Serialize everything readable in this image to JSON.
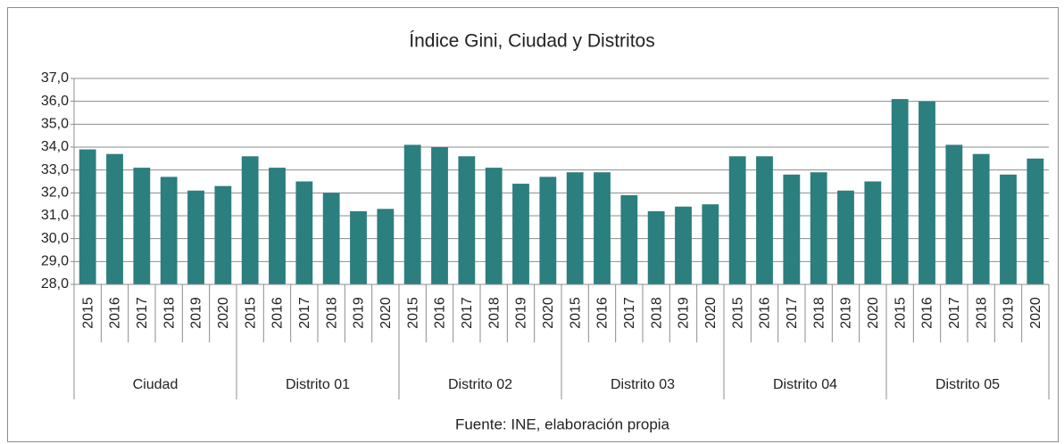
{
  "chart_data": {
    "type": "bar",
    "title": "Índice Gini, Ciudad y Distritos",
    "source": "Fuente: INE, elaboración propia",
    "color": "#2b7f7e",
    "groups": [
      {
        "name": "Ciudad",
        "categories": [
          "2015",
          "2016",
          "2017",
          "2018",
          "2019",
          "2020"
        ],
        "values": [
          33.9,
          33.7,
          33.1,
          32.7,
          32.1,
          32.3
        ]
      },
      {
        "name": "Distrito 01",
        "categories": [
          "2015",
          "2016",
          "2017",
          "2018",
          "2019",
          "2020"
        ],
        "values": [
          33.6,
          33.1,
          32.5,
          32.0,
          31.2,
          31.3
        ]
      },
      {
        "name": "Distrito 02",
        "categories": [
          "2015",
          "2016",
          "2017",
          "2018",
          "2019",
          "2020"
        ],
        "values": [
          34.1,
          34.0,
          33.6,
          33.1,
          32.4,
          32.7
        ]
      },
      {
        "name": "Distrito 03",
        "categories": [
          "2015",
          "2016",
          "2017",
          "2018",
          "2019",
          "2020"
        ],
        "values": [
          32.9,
          32.9,
          31.9,
          31.2,
          31.4,
          31.5
        ]
      },
      {
        "name": "Distrito 04",
        "categories": [
          "2015",
          "2016",
          "2017",
          "2018",
          "2019",
          "2020"
        ],
        "values": [
          33.6,
          33.6,
          32.8,
          32.9,
          32.1,
          32.5
        ]
      },
      {
        "name": "Distrito 05",
        "categories": [
          "2015",
          "2016",
          "2017",
          "2018",
          "2019",
          "2020"
        ],
        "values": [
          36.1,
          36.0,
          34.1,
          33.7,
          32.8,
          33.5
        ]
      }
    ],
    "ylim": [
      28,
      37
    ],
    "yticks": [
      {
        "value": 28,
        "label": "28,0"
      },
      {
        "value": 29,
        "label": "29,0"
      },
      {
        "value": 30,
        "label": "30,0"
      },
      {
        "value": 31,
        "label": "31,0"
      },
      {
        "value": 32,
        "label": "32,0"
      },
      {
        "value": 33,
        "label": "33,0"
      },
      {
        "value": 34,
        "label": "34,0"
      },
      {
        "value": 35,
        "label": "35,0"
      },
      {
        "value": 36,
        "label": "36,0"
      },
      {
        "value": 37,
        "label": "37,0"
      }
    ],
    "grid": true
  }
}
